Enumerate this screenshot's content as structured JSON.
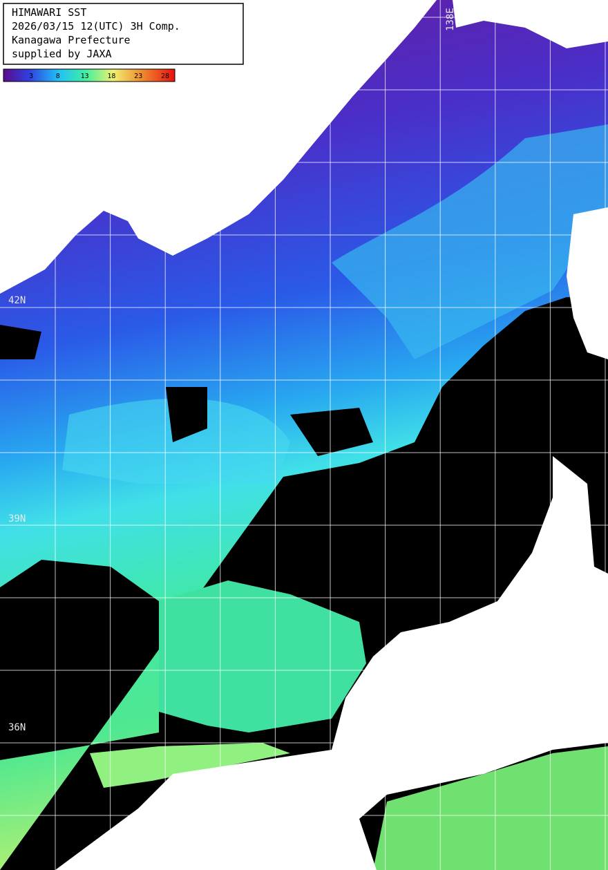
{
  "header": {
    "lines": [
      "HIMAWARI SST",
      "2026/03/15 12(UTC) 3H Comp.",
      "Kanagawa Prefecture",
      "supplied by JAXA"
    ]
  },
  "colorbar": {
    "ticks": [
      3,
      8,
      13,
      18,
      23,
      28
    ]
  },
  "grid_labels": {
    "lat": [
      "42N",
      "39N",
      "36N"
    ],
    "lon": [
      "138E"
    ]
  }
}
